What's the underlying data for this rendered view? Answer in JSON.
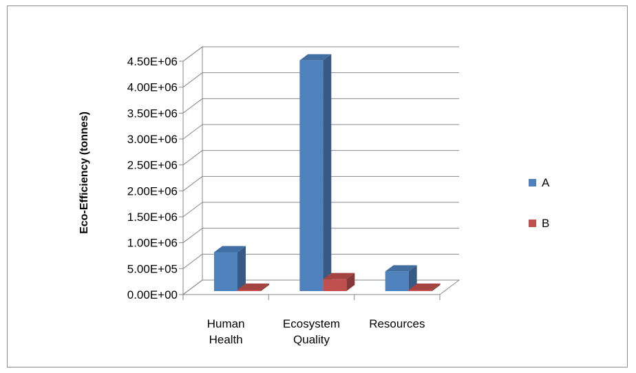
{
  "chart_data": {
    "type": "bar",
    "title": "",
    "xlabel": "",
    "ylabel": "Eco-Efficiency (tonnes)",
    "ylim": [
      0,
      4500000
    ],
    "yticks": [
      "0.00E+00",
      "5.00E+05",
      "1.00E+06",
      "1.50E+06",
      "2.00E+06",
      "2.50E+06",
      "3.00E+06",
      "3.50E+06",
      "4.00E+06",
      "4.50E+06"
    ],
    "categories": [
      [
        "Human",
        "Health"
      ],
      [
        "Ecosystem",
        "Quality"
      ],
      [
        "Resources"
      ]
    ],
    "series": [
      {
        "name": "A",
        "color": "#4f81bd",
        "values": [
          750000,
          4450000,
          380000
        ]
      },
      {
        "name": "B",
        "color": "#c0504d",
        "values": [
          10000,
          230000,
          5000
        ]
      }
    ],
    "grid": true,
    "legend": "right",
    "style": "3d-clustered-column"
  }
}
